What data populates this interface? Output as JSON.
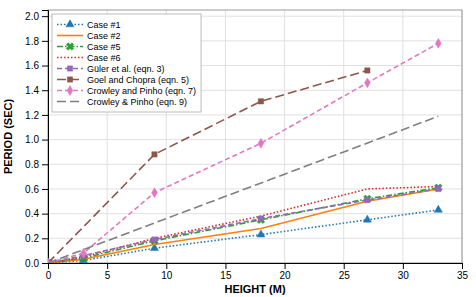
{
  "chart_data": {
    "type": "line",
    "xlabel": "HEIGHT (M)",
    "ylabel": "PERIOD (SEC)",
    "xlim": [
      0,
      35
    ],
    "ylim": [
      0,
      2.05
    ],
    "xticks": [
      0,
      5,
      10,
      15,
      20,
      25,
      30,
      35
    ],
    "yticks": [
      {
        "value": 0,
        "label": "0.0"
      },
      0.2,
      0.4,
      0.6,
      0.8,
      {
        "value": 1.0,
        "label": "1.0"
      },
      1.2,
      1.4,
      1.6,
      1.8,
      {
        "value": 2.0,
        "label": "2.0"
      }
    ],
    "grid": true,
    "legend": "upper left",
    "series": [
      {
        "name": "Case #1",
        "x": [
          0,
          3,
          9,
          18,
          27,
          33
        ],
        "values": [
          0,
          0.02,
          0.12,
          0.23,
          0.35,
          0.43
        ],
        "line_style": "dotted",
        "marker": "triangle"
      },
      {
        "name": "Case #2",
        "x": [
          0,
          3,
          9,
          18,
          27,
          33
        ],
        "values": [
          0,
          0.03,
          0.15,
          0.28,
          0.5,
          0.6
        ],
        "line_style": "solid"
      },
      {
        "name": "Case #5",
        "x": [
          0,
          3,
          9,
          18,
          27,
          33
        ],
        "values": [
          0,
          0.04,
          0.18,
          0.35,
          0.52,
          0.61
        ],
        "line_style": "dashdot",
        "marker": "x"
      },
      {
        "name": "Case #6",
        "x": [
          0,
          3,
          9,
          18,
          27,
          33
        ],
        "values": [
          0,
          0.05,
          0.2,
          0.38,
          0.6,
          0.62
        ],
        "line_style": "dotted"
      },
      {
        "name": "Güler et al. (eqn. 3)",
        "x": [
          0,
          3,
          9,
          18,
          27,
          33
        ],
        "values": [
          0,
          0.06,
          0.19,
          0.36,
          0.51,
          0.6
        ],
        "line_style": "dashed",
        "marker": "square"
      },
      {
        "name": "Goel and Chopra (eqn. 5)",
        "x": [
          0,
          9,
          18,
          27
        ],
        "values": [
          0,
          0.88,
          1.31,
          1.56
        ],
        "line_style": "long_dash",
        "marker": "square"
      },
      {
        "name": "Crowley and Pinho (eqn. 7)",
        "x": [
          0,
          3,
          9,
          18,
          27,
          33
        ],
        "values": [
          0,
          0.08,
          0.57,
          0.97,
          1.46,
          1.78
        ],
        "line_style": "dashed",
        "marker": "diamond"
      },
      {
        "name": "Crowley & Pinho (eqn. 9)",
        "x": [
          0,
          5,
          10,
          15,
          20,
          25,
          30,
          33
        ],
        "values": [
          0,
          0.18,
          0.36,
          0.54,
          0.72,
          0.9,
          1.08,
          1.19
        ],
        "line_style": "long_dash"
      }
    ]
  }
}
